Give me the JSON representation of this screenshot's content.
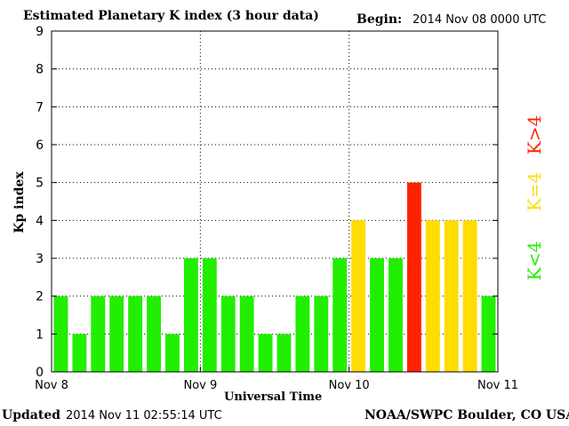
{
  "header": {
    "title": "Estimated Planetary K index (3 hour data)",
    "begin_label": "Begin:",
    "begin_value": "2014 Nov 08 0000 UTC"
  },
  "footer": {
    "updated_label": "Updated",
    "updated_value": "2014 Nov 11 02:55:14 UTC",
    "credit": "NOAA/SWPC Boulder, CO USA"
  },
  "legend": [
    {
      "label": "K<4",
      "color": "#22ee00"
    },
    {
      "label": "K=4",
      "color": "#ffdd00"
    },
    {
      "label": "K>4",
      "color": "#ff2200"
    }
  ],
  "chart_data": {
    "type": "bar",
    "title": "Estimated Planetary K index (3 hour data)",
    "xlabel": "Universal Time",
    "ylabel": "Kp index",
    "ylim": [
      0,
      9
    ],
    "yticks": [
      0,
      1,
      2,
      3,
      4,
      5,
      6,
      7,
      8,
      9
    ],
    "xtick_labels": [
      "Nov 8",
      "Nov 9",
      "Nov 10",
      "Nov 11"
    ],
    "grid": true,
    "colors": {
      "below": "#22ee00",
      "equal": "#ffdd00",
      "above": "#ff2200"
    },
    "values": [
      2,
      1,
      2,
      2,
      2,
      2,
      1,
      3,
      3,
      2,
      2,
      1,
      1,
      2,
      2,
      3,
      4,
      3,
      3,
      5,
      4,
      4,
      4,
      2
    ]
  }
}
